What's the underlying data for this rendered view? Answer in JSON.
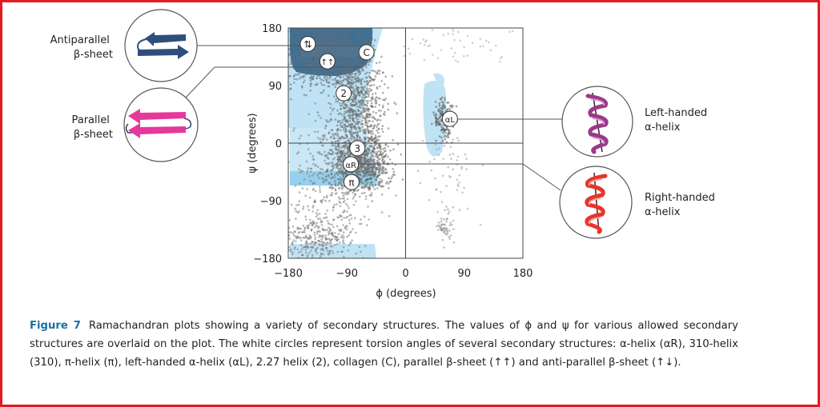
{
  "colors": {
    "frame": "#e11b22",
    "figure_label": "#1a6fa6",
    "scatter": "#6e6e6e",
    "sheet_region": "#2f5f86",
    "allowed_light": "#bfe3f5",
    "allowed_mid": "#7fc8ea",
    "antiparallel_arrows": "#2e4f7c",
    "parallel_arrows": "#e4399b",
    "left_helix": "#9c3a8a",
    "right_helix": "#e8352b"
  },
  "chart_data": {
    "type": "scatter",
    "xlabel": "ϕ (degrees)",
    "ylabel": "ψ (degrees)",
    "xlim": [
      -180,
      180
    ],
    "ylim": [
      -180,
      180
    ],
    "xticks": [
      "−180",
      "−90",
      "0",
      "90",
      "180"
    ],
    "yticks": [
      "180",
      "90",
      "0",
      "−90",
      "−180"
    ],
    "xtick_values": [
      -180,
      -90,
      0,
      90,
      180
    ],
    "ytick_values": [
      180,
      90,
      0,
      -90,
      -180
    ],
    "grid": false,
    "crosshair_at_zero": true,
    "markers": [
      {
        "id": "antiparallel",
        "label": "⇅",
        "phi": -150,
        "psi": 155
      },
      {
        "id": "parallel",
        "label": "↑↑",
        "phi": -120,
        "psi": 128
      },
      {
        "id": "collagen",
        "label": "C",
        "phi": -60,
        "psi": 142
      },
      {
        "id": "helix22",
        "label": "2",
        "phi": -95,
        "psi": 78
      },
      {
        "id": "helix310",
        "label": "3",
        "phi": -74,
        "psi": -8
      },
      {
        "id": "alphaR",
        "label": "αR",
        "phi": -84,
        "psi": -33
      },
      {
        "id": "pi",
        "label": "π",
        "phi": -83,
        "psi": -61
      },
      {
        "id": "alphaL",
        "label": "αL",
        "phi": 68,
        "psi": 38
      }
    ]
  },
  "annotations": {
    "antiparallel_label": [
      "Antiparallel",
      "β-sheet"
    ],
    "parallel_label": [
      "Parallel",
      "β-sheet"
    ],
    "left_helix_label": [
      "Left-handed",
      "α-helix"
    ],
    "right_helix_label": [
      "Right-handed",
      "α-helix"
    ]
  },
  "caption": {
    "label": "Figure 7",
    "text": "Ramachandran plots showing a variety of secondary structures. The values of ϕ and ψ for various allowed secondary structures are overlaid on the plot. The white circles represent torsion angles of several secondary structures: α-helix (αR), 310-helix (310), π-helix (π), left-handed α-helix (αL), 2.27 helix (2), collagen (C), parallel β-sheet (↑↑) and anti-parallel β-sheet (↑↓)."
  }
}
